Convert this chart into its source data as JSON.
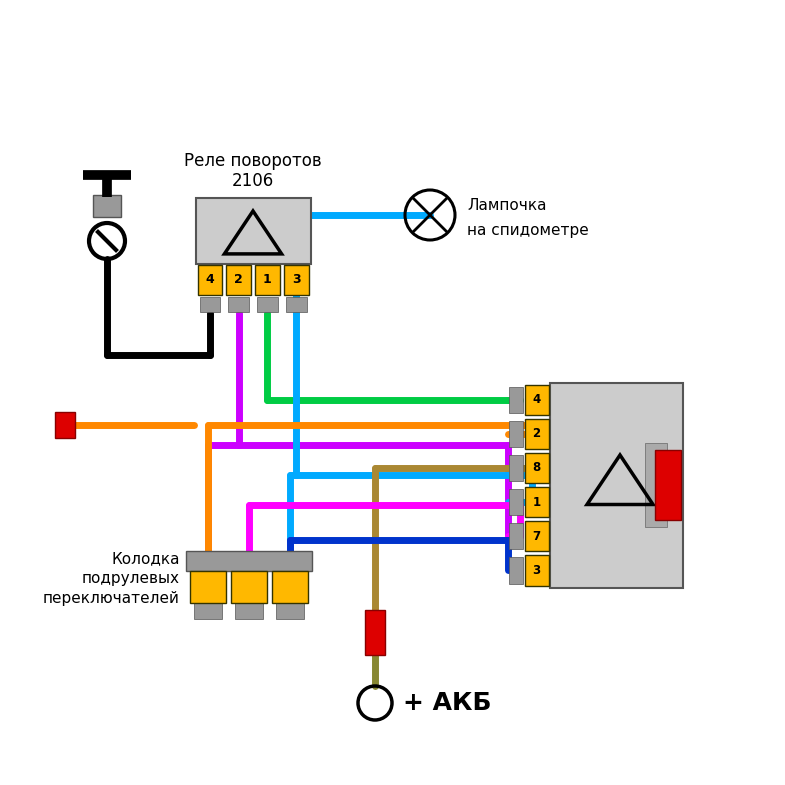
{
  "bg": "#ffffff",
  "r1_label1": "Реле поворотов",
  "r1_label2": "2106",
  "r1_pins": [
    "4",
    "2",
    "1",
    "3"
  ],
  "r2_pins": [
    "4",
    "2",
    "8",
    "1",
    "7",
    "3"
  ],
  "lamp_l1": "Лампочка",
  "lamp_l2": "на спидометре",
  "c_l1": "Колодка",
  "c_l2": "подрулевых",
  "c_l3": "переключателей",
  "akb_l": "+ АКБ",
  "pin_c": "#FFB800",
  "body_c": "#CCCCCC",
  "lw": 5.0,
  "black": "#000000",
  "purple": "#CC00FF",
  "green": "#00CC44",
  "blue": "#00AAFF",
  "orange": "#FF8800",
  "brown": "#AA8833",
  "magenta": "#FF00FF",
  "dblue": "#0033CC",
  "red": "#DD0000",
  "gray": "#999999",
  "dgray": "#666666"
}
